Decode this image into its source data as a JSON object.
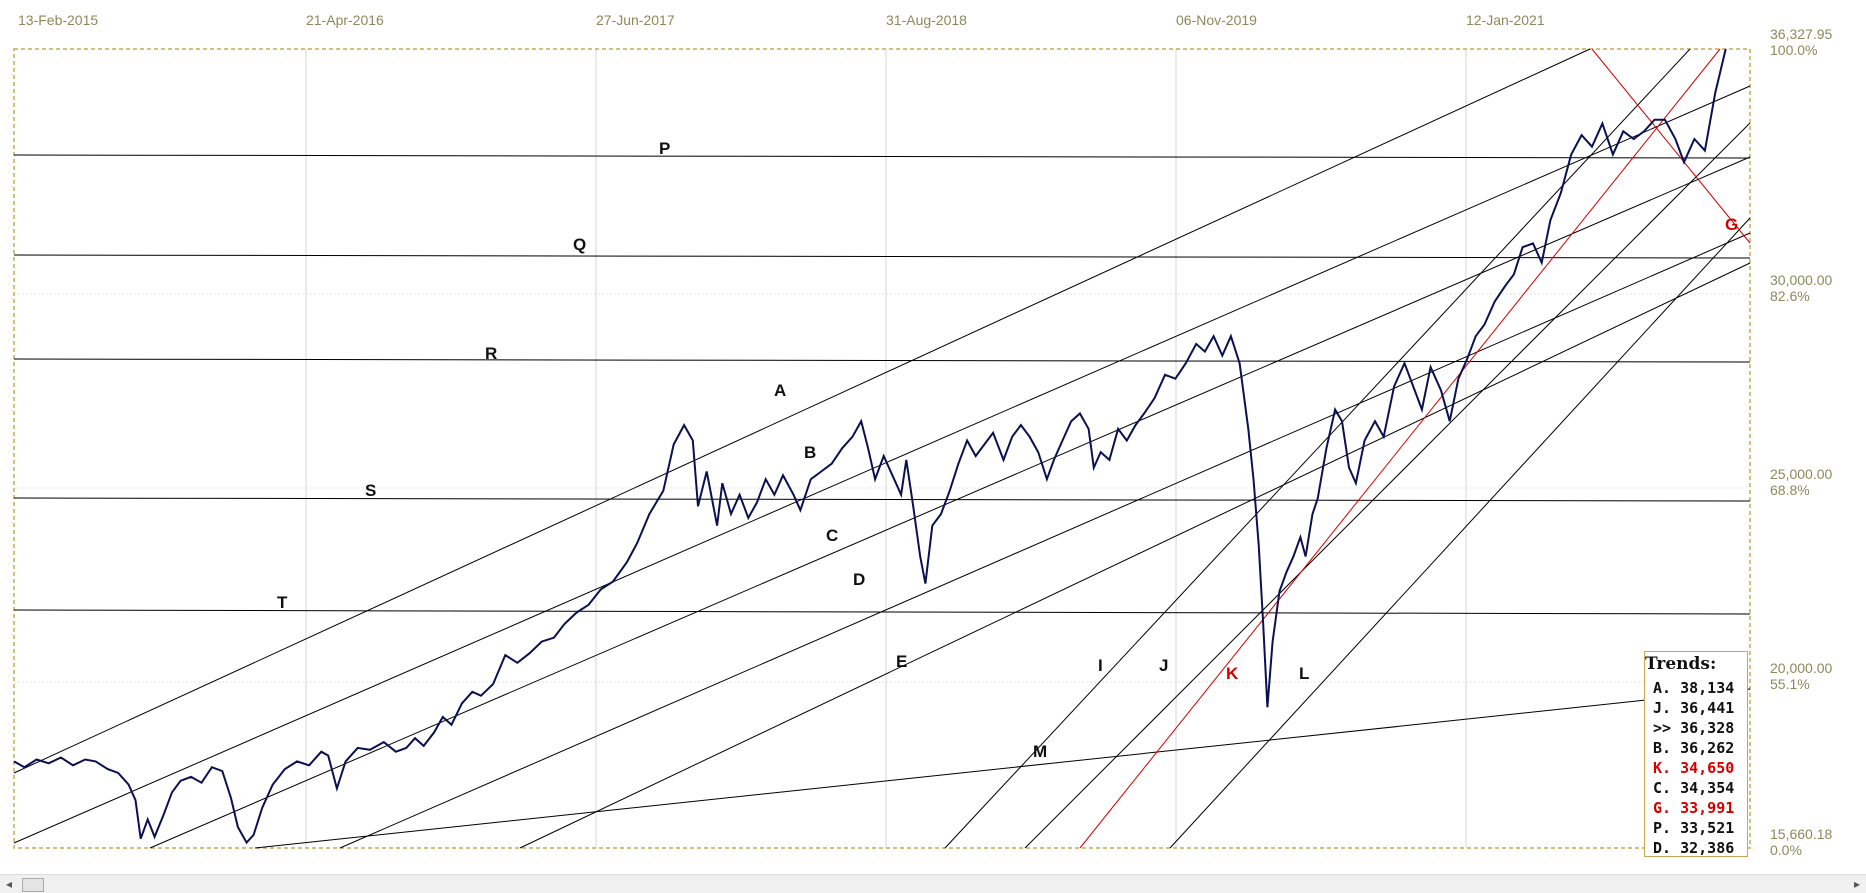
{
  "chart_data": {
    "type": "line",
    "title": "",
    "x_dates": [
      "13-Feb-2015",
      "21-Apr-2016",
      "27-Jun-2017",
      "31-Aug-2018",
      "06-Nov-2019",
      "12-Jan-2021"
    ],
    "y_range": [
      15660.18,
      36327.95
    ],
    "y_ticks": [
      {
        "value": "36,327.95",
        "pct": "100.0%"
      },
      {
        "value": "30,000.00",
        "pct": "82.6%"
      },
      {
        "value": "25,000.00",
        "pct": "68.8%"
      },
      {
        "value": "20,000.00",
        "pct": "55.1%"
      },
      {
        "value": "15,660.18",
        "pct": "0.0%"
      }
    ],
    "series": [
      {
        "values": [
          [
            0,
            17900
          ],
          [
            0.6,
            17750
          ],
          [
            1.3,
            17950
          ],
          [
            2,
            17850
          ],
          [
            2.7,
            18000
          ],
          [
            3.4,
            17800
          ],
          [
            4.1,
            17950
          ],
          [
            4.7,
            17900
          ],
          [
            5.4,
            17700
          ],
          [
            6,
            17600
          ],
          [
            6.6,
            17300
          ],
          [
            7,
            16900
          ],
          [
            7.3,
            15900
          ],
          [
            7.7,
            16400
          ],
          [
            8.1,
            15950
          ],
          [
            8.6,
            16500
          ],
          [
            9.1,
            17100
          ],
          [
            9.6,
            17400
          ],
          [
            10.2,
            17500
          ],
          [
            10.8,
            17350
          ],
          [
            11.4,
            17750
          ],
          [
            12,
            17650
          ],
          [
            12.5,
            16950
          ],
          [
            12.9,
            16200
          ],
          [
            13.4,
            15800
          ],
          [
            13.8,
            16000
          ],
          [
            14.3,
            16700
          ],
          [
            14.9,
            17300
          ],
          [
            15.6,
            17700
          ],
          [
            16.3,
            17900
          ],
          [
            17,
            17800
          ],
          [
            17.7,
            18150
          ],
          [
            18.1,
            18050
          ],
          [
            18.6,
            17200
          ],
          [
            19.1,
            17900
          ],
          [
            19.8,
            18250
          ],
          [
            20.5,
            18200
          ],
          [
            21.3,
            18400
          ],
          [
            22,
            18150
          ],
          [
            22.6,
            18250
          ],
          [
            23.1,
            18500
          ],
          [
            23.6,
            18300
          ],
          [
            24.2,
            18650
          ],
          [
            24.7,
            19050
          ],
          [
            25.2,
            18850
          ],
          [
            25.8,
            19400
          ],
          [
            26.4,
            19700
          ],
          [
            26.9,
            19600
          ],
          [
            27.6,
            19900
          ],
          [
            28.3,
            20650
          ],
          [
            29,
            20450
          ],
          [
            29.7,
            20700
          ],
          [
            30.4,
            21000
          ],
          [
            31.1,
            21100
          ],
          [
            31.7,
            21450
          ],
          [
            32.4,
            21750
          ],
          [
            33.1,
            21950
          ],
          [
            33.8,
            22350
          ],
          [
            34.5,
            22550
          ],
          [
            35.3,
            23050
          ],
          [
            35.9,
            23550
          ],
          [
            36.6,
            24300
          ],
          [
            37.4,
            24900
          ],
          [
            38,
            26100
          ],
          [
            38.6,
            26600
          ],
          [
            39.1,
            26200
          ],
          [
            39.4,
            24500
          ],
          [
            39.9,
            25400
          ],
          [
            40.2,
            24700
          ],
          [
            40.5,
            24000
          ],
          [
            40.8,
            25100
          ],
          [
            41.3,
            24300
          ],
          [
            41.8,
            24800
          ],
          [
            42.3,
            24200
          ],
          [
            42.8,
            24600
          ],
          [
            43.3,
            25200
          ],
          [
            43.8,
            24800
          ],
          [
            44.3,
            25300
          ],
          [
            44.9,
            24800
          ],
          [
            45.3,
            24400
          ],
          [
            45.9,
            25200
          ],
          [
            46.5,
            25400
          ],
          [
            47.1,
            25600
          ],
          [
            47.7,
            26000
          ],
          [
            48.3,
            26300
          ],
          [
            48.8,
            26700
          ],
          [
            49.2,
            26000
          ],
          [
            49.6,
            25200
          ],
          [
            50.1,
            25800
          ],
          [
            50.6,
            25300
          ],
          [
            51.1,
            24800
          ],
          [
            51.4,
            25700
          ],
          [
            51.8,
            24500
          ],
          [
            52.2,
            23200
          ],
          [
            52.5,
            22500
          ],
          [
            52.9,
            24000
          ],
          [
            53.4,
            24300
          ],
          [
            53.9,
            24900
          ],
          [
            54.4,
            25600
          ],
          [
            54.9,
            26200
          ],
          [
            55.4,
            25800
          ],
          [
            55.9,
            26100
          ],
          [
            56.4,
            26400
          ],
          [
            57,
            25700
          ],
          [
            57.5,
            26300
          ],
          [
            58,
            26600
          ],
          [
            58.5,
            26300
          ],
          [
            59,
            25900
          ],
          [
            59.5,
            25200
          ],
          [
            59.9,
            25700
          ],
          [
            60.4,
            26200
          ],
          [
            60.9,
            26700
          ],
          [
            61.4,
            26900
          ],
          [
            61.9,
            26500
          ],
          [
            62.2,
            25500
          ],
          [
            62.6,
            25900
          ],
          [
            63.1,
            25700
          ],
          [
            63.6,
            26500
          ],
          [
            64.1,
            26200
          ],
          [
            64.6,
            26600
          ],
          [
            65.1,
            26900
          ],
          [
            65.7,
            27300
          ],
          [
            66.3,
            27900
          ],
          [
            66.9,
            27800
          ],
          [
            67.5,
            28200
          ],
          [
            68.1,
            28700
          ],
          [
            68.6,
            28500
          ],
          [
            69.1,
            28900
          ],
          [
            69.6,
            28400
          ],
          [
            70.1,
            28900
          ],
          [
            70.6,
            28200
          ],
          [
            71.1,
            26500
          ],
          [
            71.4,
            25200
          ],
          [
            71.7,
            23500
          ],
          [
            71.95,
            21500
          ],
          [
            72.2,
            19300
          ],
          [
            72.5,
            21000
          ],
          [
            72.9,
            22300
          ],
          [
            73.3,
            22800
          ],
          [
            73.7,
            23200
          ],
          [
            74.1,
            23700
          ],
          [
            74.4,
            23200
          ],
          [
            74.8,
            24300
          ],
          [
            75.1,
            24700
          ],
          [
            75.6,
            26000
          ],
          [
            76.1,
            27000
          ],
          [
            76.5,
            26700
          ],
          [
            76.9,
            25500
          ],
          [
            77.3,
            25100
          ],
          [
            77.8,
            26200
          ],
          [
            78.4,
            26700
          ],
          [
            78.9,
            26300
          ],
          [
            79.5,
            27600
          ],
          [
            80.1,
            28200
          ],
          [
            80.6,
            27600
          ],
          [
            81.1,
            27000
          ],
          [
            81.6,
            28100
          ],
          [
            82.2,
            27500
          ],
          [
            82.7,
            26700
          ],
          [
            83.2,
            27800
          ],
          [
            83.7,
            28300
          ],
          [
            84.2,
            28900
          ],
          [
            84.7,
            29200
          ],
          [
            85.3,
            29800
          ],
          [
            85.9,
            30200
          ],
          [
            86.4,
            30500
          ],
          [
            86.9,
            31200
          ],
          [
            87.5,
            31300
          ],
          [
            88.0,
            30800
          ],
          [
            88.5,
            31900
          ],
          [
            89.1,
            32600
          ],
          [
            89.7,
            33600
          ],
          [
            90.3,
            34100
          ],
          [
            90.9,
            33800
          ],
          [
            91.5,
            34400
          ],
          [
            92.1,
            33600
          ],
          [
            92.7,
            34200
          ],
          [
            93.3,
            34000
          ],
          [
            93.9,
            34200
          ],
          [
            94.5,
            34500
          ],
          [
            95.1,
            34500
          ],
          [
            95.7,
            34000
          ],
          [
            96.2,
            33400
          ],
          [
            96.8,
            34000
          ],
          [
            97.4,
            33700
          ],
          [
            98,
            35200
          ],
          [
            98.6,
            36328
          ]
        ]
      }
    ],
    "trend_lines": [
      {
        "label": "A",
        "color": "#000000"
      },
      {
        "label": "B",
        "color": "#000000"
      },
      {
        "label": "C",
        "color": "#000000"
      },
      {
        "label": "D",
        "color": "#000000"
      },
      {
        "label": "E",
        "color": "#000000"
      },
      {
        "label": "G",
        "color": "#d40000"
      },
      {
        "label": "I",
        "color": "#000000"
      },
      {
        "label": "J",
        "color": "#000000"
      },
      {
        "label": "K",
        "color": "#d40000"
      },
      {
        "label": "L",
        "color": "#000000"
      },
      {
        "label": "M",
        "color": "#000000"
      },
      {
        "label": "P",
        "color": "#000000"
      },
      {
        "label": "Q",
        "color": "#000000"
      },
      {
        "label": "R",
        "color": "#000000"
      },
      {
        "label": "S",
        "color": "#000000"
      },
      {
        "label": "T",
        "color": "#000000"
      }
    ],
    "line_color": "#0a1050",
    "grid": true
  },
  "trends_box": {
    "title": "Trends:",
    "rows": [
      {
        "key": "A.",
        "value": "38,134",
        "color": "#111111"
      },
      {
        "key": "J.",
        "value": "36,441",
        "color": "#111111"
      },
      {
        "key": ">>",
        "value": "36,328",
        "color": "#111111"
      },
      {
        "key": "B.",
        "value": "36,262",
        "color": "#111111"
      },
      {
        "key": "K.",
        "value": "34,650",
        "color": "#d40000"
      },
      {
        "key": "C.",
        "value": "34,354",
        "color": "#111111"
      },
      {
        "key": "G.",
        "value": "33,991",
        "color": "#d40000"
      },
      {
        "key": "P.",
        "value": "33,521",
        "color": "#111111"
      },
      {
        "key": "D.",
        "value": "32,386",
        "color": "#111111"
      }
    ]
  },
  "scrollbar": {
    "left_arrow": "◂",
    "right_arrow": "▸"
  }
}
